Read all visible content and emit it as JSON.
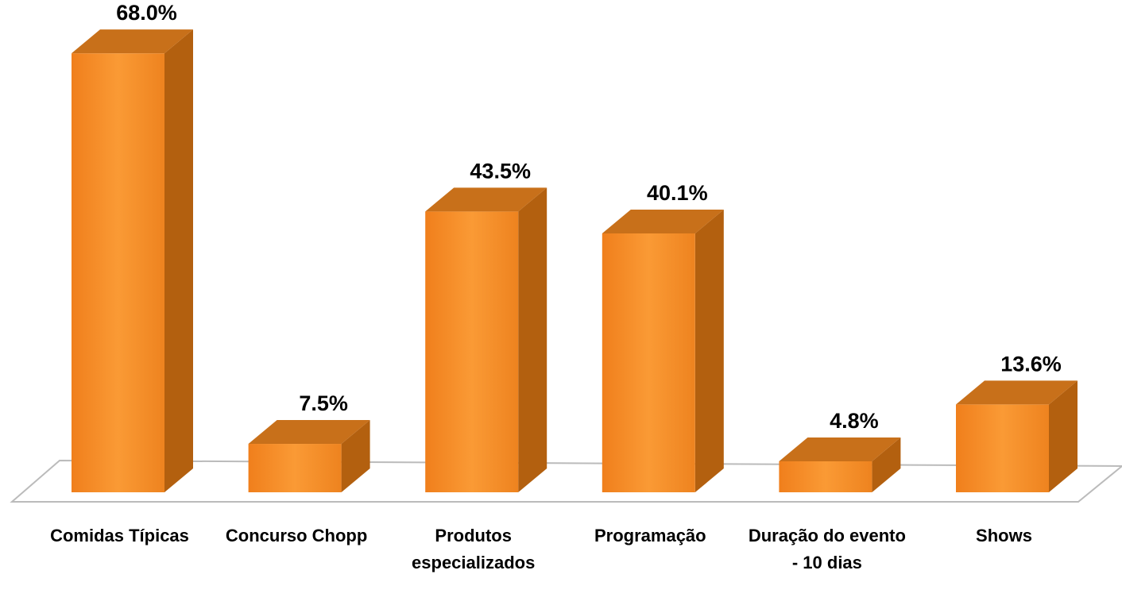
{
  "chart_data": {
    "type": "bar3d",
    "categories": [
      "Comidas Típicas",
      "Concurso Chopp",
      "Produtos especializados",
      "Programação",
      "Duração do evento - 10 dias",
      "Shows"
    ],
    "values": [
      68.0,
      7.5,
      43.5,
      40.1,
      4.8,
      13.6
    ],
    "value_labels": [
      "68.0%",
      "7.5%",
      "43.5%",
      "40.1%",
      "4.8%",
      "13.6%"
    ],
    "color": "#f28a26"
  }
}
